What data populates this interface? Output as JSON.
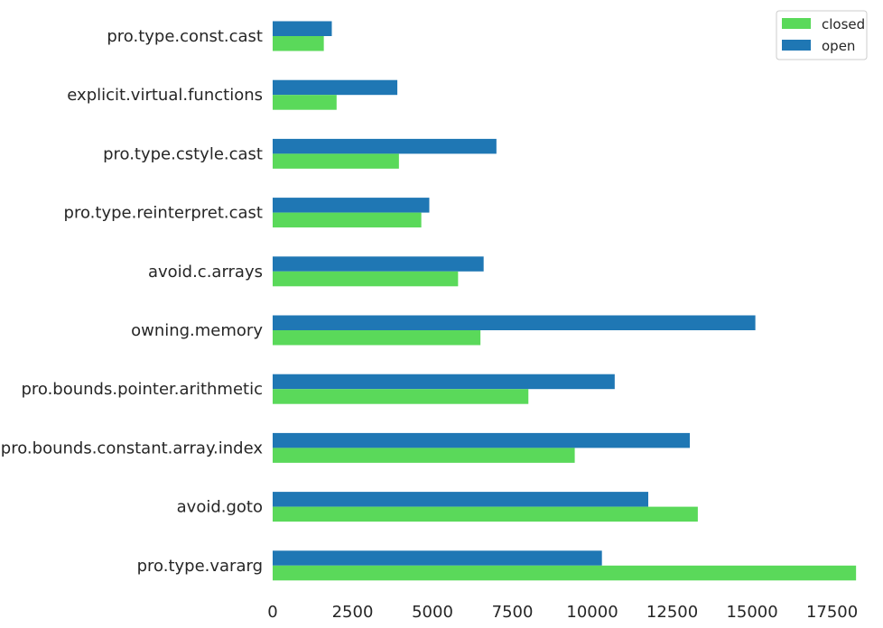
{
  "chart_data": {
    "type": "bar",
    "orientation": "horizontal",
    "categories": [
      "pro.type.const.cast",
      "explicit.virtual.functions",
      "pro.type.cstyle.cast",
      "pro.type.reinterpret.cast",
      "avoid.c.arrays",
      "owning.memory",
      "pro.bounds.pointer.arithmetic",
      "pro.bounds.constant.array.index",
      "avoid.goto",
      "pro.type.vararg"
    ],
    "series": [
      {
        "name": "closed",
        "color": "#5ad95a",
        "values": [
          1600,
          2000,
          3950,
          4650,
          5800,
          6500,
          8000,
          9450,
          13300,
          18250
        ]
      },
      {
        "name": "open",
        "color": "#1f77b4",
        "values": [
          1850,
          3900,
          7000,
          4900,
          6600,
          15100,
          10700,
          13050,
          11750,
          10300
        ]
      }
    ],
    "xticks": [
      "0",
      "2500",
      "5000",
      "7500",
      "10000",
      "12500",
      "15000",
      "17500"
    ],
    "xlim": [
      0,
      18500
    ],
    "grid": false,
    "legend_position": "top-right"
  }
}
